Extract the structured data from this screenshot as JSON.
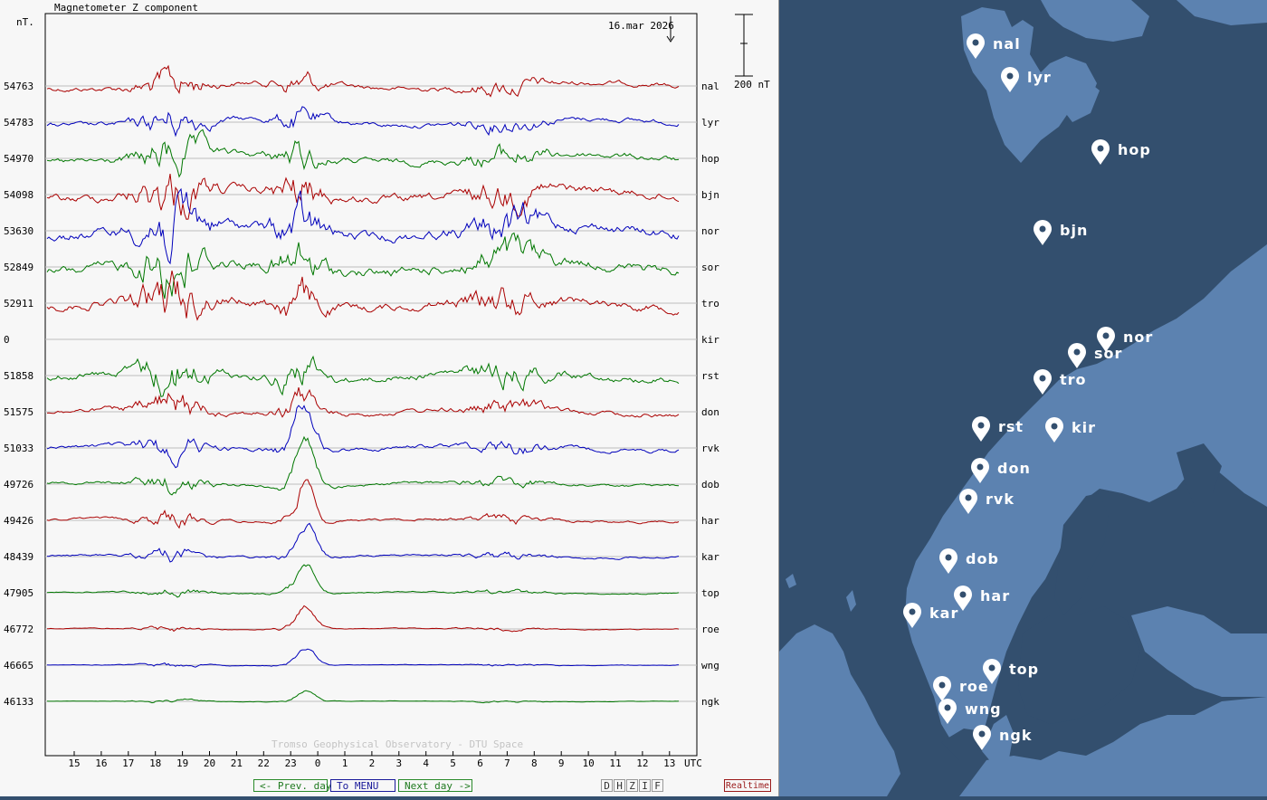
{
  "plot": {
    "title": "Magnetometer Z component",
    "unit": "nT.",
    "date": "16.mar 2026",
    "scale_label": "200 nT",
    "credit": "Tromso Geophysical Observatory - DTU Space",
    "utc_label": "UTC"
  },
  "chart_data": {
    "type": "line",
    "x_hours_utc": [
      "15",
      "16",
      "17",
      "18",
      "19",
      "20",
      "21",
      "22",
      "23",
      "0",
      "1",
      "2",
      "3",
      "4",
      "5",
      "6",
      "7",
      "8",
      "9",
      "10",
      "11",
      "12",
      "13"
    ],
    "series": [
      {
        "name": "nal",
        "baseline": "54763",
        "color": "#aa0000",
        "activity": 0.35
      },
      {
        "name": "lyr",
        "baseline": "54783",
        "color": "#0000bb",
        "activity": 0.35
      },
      {
        "name": "hop",
        "baseline": "54970",
        "color": "#007700",
        "activity": 0.45
      },
      {
        "name": "bjn",
        "baseline": "54098",
        "color": "#aa0000",
        "activity": 0.6
      },
      {
        "name": "nor",
        "baseline": "53630",
        "color": "#0000bb",
        "activity": 0.7
      },
      {
        "name": "sor",
        "baseline": "52849",
        "color": "#007700",
        "activity": 0.7
      },
      {
        "name": "tro",
        "baseline": "52911",
        "color": "#aa0000",
        "activity": 0.6
      },
      {
        "name": "kir",
        "baseline": "0",
        "color": "#0000bb",
        "activity": 0.0
      },
      {
        "name": "rst",
        "baseline": "51858",
        "color": "#007700",
        "activity": 0.5
      },
      {
        "name": "don",
        "baseline": "51575",
        "color": "#aa0000",
        "activity": 0.35
      },
      {
        "name": "rvk",
        "baseline": "51033",
        "color": "#0000bb",
        "activity": 0.3
      },
      {
        "name": "dob",
        "baseline": "49726",
        "color": "#007700",
        "activity": 0.22
      },
      {
        "name": "har",
        "baseline": "49426",
        "color": "#aa0000",
        "activity": 0.18
      },
      {
        "name": "kar",
        "baseline": "48439",
        "color": "#0000bb",
        "activity": 0.16
      },
      {
        "name": "top",
        "baseline": "47905",
        "color": "#007700",
        "activity": 0.1
      },
      {
        "name": "roe",
        "baseline": "46772",
        "color": "#aa0000",
        "activity": 0.07
      },
      {
        "name": "wng",
        "baseline": "46665",
        "color": "#0000bb",
        "activity": 0.05
      },
      {
        "name": "ngk",
        "baseline": "46133",
        "color": "#007700",
        "activity": 0.04
      }
    ]
  },
  "nav": {
    "prev": "<- Prev. day",
    "menu": "To MENU",
    "next": "Next day ->",
    "components": [
      "D",
      "H",
      "Z",
      "I",
      "F"
    ],
    "realtime": "Realtime"
  },
  "map": {
    "colors": {
      "sea": "#334f6e",
      "land": "#5c82b0",
      "pin": "#ffffff"
    },
    "stations": [
      {
        "code": "nal"
      },
      {
        "code": "lyr"
      },
      {
        "code": "hop"
      },
      {
        "code": "bjn"
      },
      {
        "code": "nor"
      },
      {
        "code": "sor"
      },
      {
        "code": "tro"
      },
      {
        "code": "rst"
      },
      {
        "code": "kir"
      },
      {
        "code": "don"
      },
      {
        "code": "rvk"
      },
      {
        "code": "dob"
      },
      {
        "code": "har"
      },
      {
        "code": "kar"
      },
      {
        "code": "top"
      },
      {
        "code": "roe"
      },
      {
        "code": "wng"
      },
      {
        "code": "ngk"
      }
    ]
  }
}
